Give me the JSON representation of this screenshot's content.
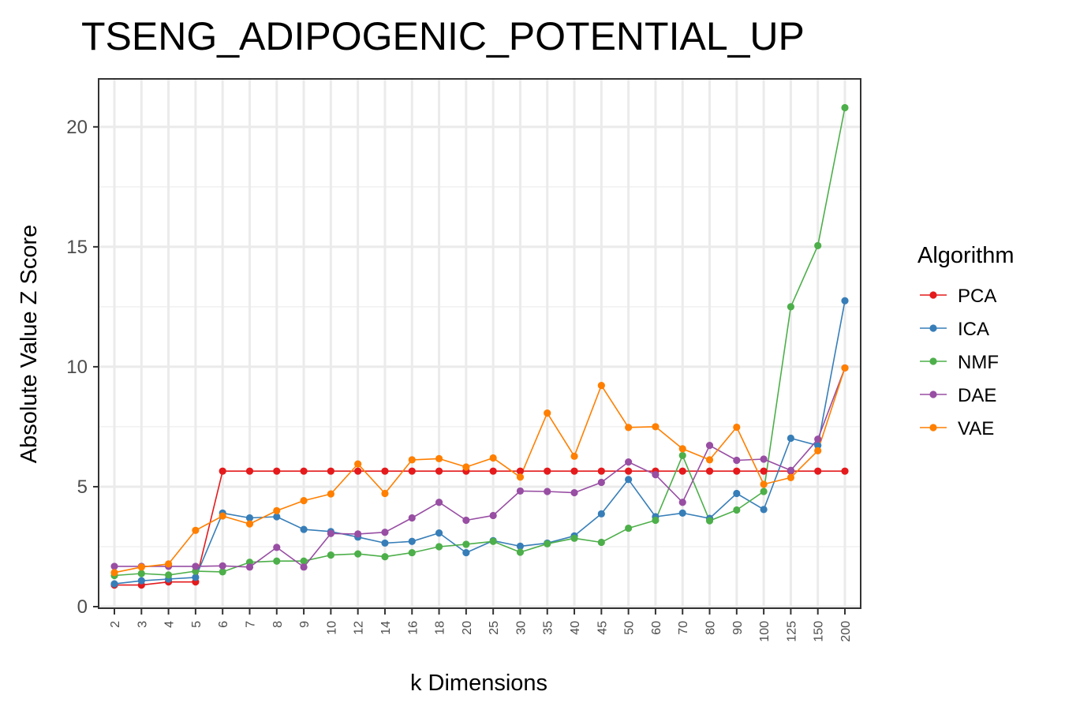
{
  "chart_data": {
    "type": "line",
    "title": "TSENG_ADIPOGENIC_POTENTIAL_UP",
    "xlabel": "k Dimensions",
    "ylabel": "Absolute Value Z Score",
    "ylim": [
      0,
      22
    ],
    "yticks": [
      "0",
      "5",
      "10",
      "15",
      "20"
    ],
    "grid": true,
    "legend_title": "Algorithm",
    "legend_position": "right",
    "categories": [
      "2",
      "3",
      "4",
      "5",
      "6",
      "7",
      "8",
      "9",
      "10",
      "12",
      "14",
      "16",
      "18",
      "20",
      "25",
      "30",
      "35",
      "40",
      "45",
      "50",
      "60",
      "70",
      "80",
      "90",
      "100",
      "125",
      "150",
      "200"
    ],
    "series": [
      {
        "name": "PCA",
        "color": "#E41A1C",
        "values": [
          0.9,
          0.9,
          1.03,
          1.03,
          5.65,
          5.65,
          5.65,
          5.65,
          5.65,
          5.65,
          5.65,
          5.65,
          5.65,
          5.65,
          5.65,
          5.65,
          5.65,
          5.65,
          5.65,
          5.65,
          5.65,
          5.65,
          5.65,
          5.65,
          5.65,
          5.65,
          5.65,
          5.65
        ]
      },
      {
        "name": "ICA",
        "color": "#377EB8",
        "values": [
          0.95,
          1.08,
          1.15,
          1.22,
          3.9,
          3.7,
          3.75,
          3.22,
          3.13,
          2.9,
          2.65,
          2.72,
          3.07,
          2.25,
          2.75,
          2.52,
          2.65,
          2.95,
          3.87,
          5.3,
          3.75,
          3.9,
          3.68,
          4.72,
          4.05,
          7.02,
          6.72,
          12.75
        ]
      },
      {
        "name": "NMF",
        "color": "#4DAF4A",
        "values": [
          1.3,
          1.38,
          1.32,
          1.48,
          1.45,
          1.85,
          1.9,
          1.9,
          2.15,
          2.2,
          2.08,
          2.25,
          2.5,
          2.6,
          2.72,
          2.27,
          2.62,
          2.85,
          2.68,
          3.27,
          3.6,
          6.3,
          3.58,
          4.03,
          4.8,
          12.5,
          15.05,
          20.8
        ]
      },
      {
        "name": "DAE",
        "color": "#984EA3",
        "values": [
          1.68,
          1.68,
          1.68,
          1.68,
          1.7,
          1.65,
          2.47,
          1.65,
          3.05,
          3.03,
          3.1,
          3.7,
          4.35,
          3.6,
          3.8,
          4.82,
          4.8,
          4.75,
          5.18,
          6.03,
          5.5,
          4.35,
          6.72,
          6.1,
          6.15,
          5.68,
          6.98,
          9.95
        ]
      },
      {
        "name": "VAE",
        "color": "#FF7F00",
        "values": [
          1.42,
          1.65,
          1.78,
          3.18,
          3.78,
          3.45,
          4.0,
          4.42,
          4.7,
          5.95,
          4.72,
          6.12,
          6.17,
          5.82,
          6.2,
          5.4,
          8.07,
          6.27,
          9.22,
          7.47,
          7.5,
          6.58,
          6.12,
          7.48,
          5.1,
          5.38,
          6.5,
          9.95
        ]
      }
    ]
  }
}
